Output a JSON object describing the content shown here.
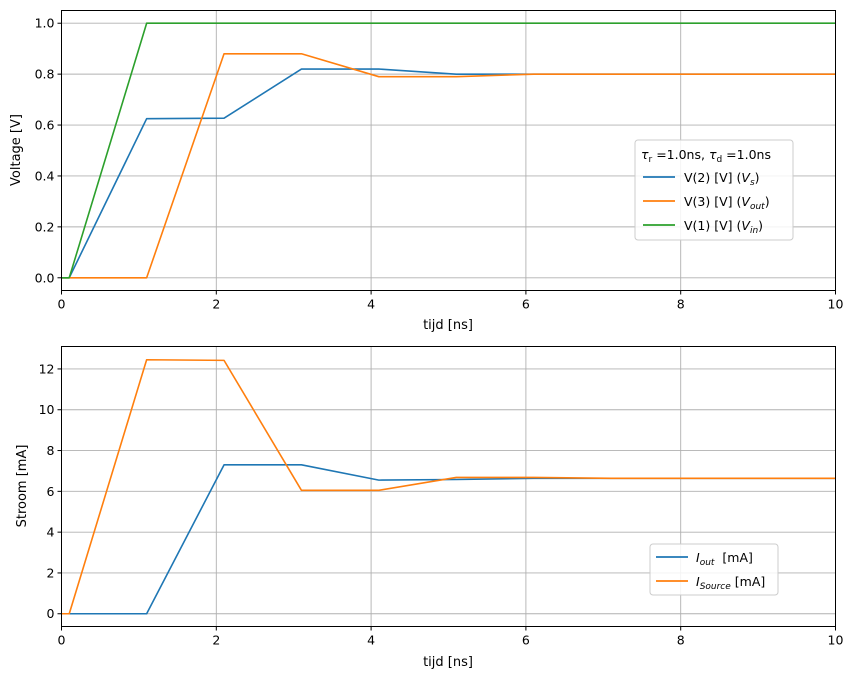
{
  "chart_data": [
    {
      "type": "line",
      "xlabel": "tijd [ns]",
      "ylabel": "Voltage [V]",
      "xlim": [
        0,
        10
      ],
      "ylim": [
        -0.05,
        1.05
      ],
      "xticks": [
        "0",
        "2",
        "4",
        "6",
        "8",
        "10"
      ],
      "yticks": [
        "0.0",
        "0.2",
        "0.4",
        "0.6",
        "0.8",
        "1.0"
      ],
      "grid": true,
      "legend": {
        "placement": "center-right",
        "title": "τr =1.0ns, τd =1.0ns",
        "title_parts": {
          "tau_r": "τ",
          "sub_r": "r",
          "val_r": " =1.0ns, ",
          "tau_d": "τ",
          "sub_d": "d",
          "val_d": " =1.0ns"
        }
      },
      "series": [
        {
          "name": "V(2) [V]  (Vs)",
          "label_main": "V(2) [V]  (",
          "label_var": "V",
          "label_sub": "s",
          "label_close": ")",
          "color": "#1f77b4",
          "x": [
            0,
            0.1,
            1.1,
            2.1,
            3.1,
            4.1,
            5.1,
            6.1,
            7.1,
            8.1,
            9.1,
            10
          ],
          "y": [
            0,
            0,
            0.625,
            0.627,
            0.82,
            0.82,
            0.8,
            0.8,
            0.8,
            0.8,
            0.8,
            0.8
          ]
        },
        {
          "name": "V(3) [V]  (Vout)",
          "label_main": "V(3) [V]  (",
          "label_var": "V",
          "label_sub": "out",
          "label_close": ")",
          "color": "#ff7f0e",
          "x": [
            0,
            0.1,
            1.1,
            2.1,
            3.1,
            4.1,
            5.1,
            6.1,
            7.1,
            8.1,
            9.1,
            10
          ],
          "y": [
            0,
            0,
            0,
            0.88,
            0.88,
            0.79,
            0.79,
            0.8,
            0.8,
            0.8,
            0.8,
            0.8
          ]
        },
        {
          "name": "V(1) [V]  (Vin)",
          "label_main": "V(1) [V]  (",
          "label_var": "V",
          "label_sub": "in",
          "label_close": ")",
          "color": "#2ca02c",
          "x": [
            0,
            0.1,
            1.1,
            2.1,
            10
          ],
          "y": [
            0,
            0,
            1.0,
            1.0,
            1.0
          ]
        }
      ]
    },
    {
      "type": "line",
      "xlabel": "tijd [ns]",
      "ylabel": "Stroom [mA]",
      "xlim": [
        0,
        10
      ],
      "ylim": [
        -0.625,
        13.1
      ],
      "xticks": [
        "0",
        "2",
        "4",
        "6",
        "8",
        "10"
      ],
      "yticks": [
        "0",
        "2",
        "4",
        "6",
        "8",
        "10",
        "12"
      ],
      "grid": true,
      "legend": {
        "placement": "lower-right"
      },
      "series": [
        {
          "name": "Iout  [mA]",
          "label_var": "I",
          "label_sub": "out",
          "label_unit": "  [mA]",
          "color": "#1f77b4",
          "x": [
            0,
            0.1,
            1.1,
            2.1,
            3.1,
            4.1,
            5.1,
            6.1,
            7.1,
            8.1,
            9.1,
            10
          ],
          "y": [
            0,
            0,
            0,
            7.3,
            7.3,
            6.55,
            6.58,
            6.64,
            6.64,
            6.64,
            6.64,
            6.64
          ]
        },
        {
          "name": "ISource [mA]",
          "label_var": "I",
          "label_sub": "Source",
          "label_unit": " [mA]",
          "color": "#ff7f0e",
          "x": [
            0,
            0.1,
            1.1,
            2.1,
            3.1,
            4.1,
            5.1,
            6.1,
            7.1,
            8.1,
            9.1,
            10
          ],
          "y": [
            0,
            0,
            12.45,
            12.42,
            6.05,
            6.05,
            6.68,
            6.68,
            6.64,
            6.64,
            6.64,
            6.64
          ]
        }
      ]
    }
  ]
}
